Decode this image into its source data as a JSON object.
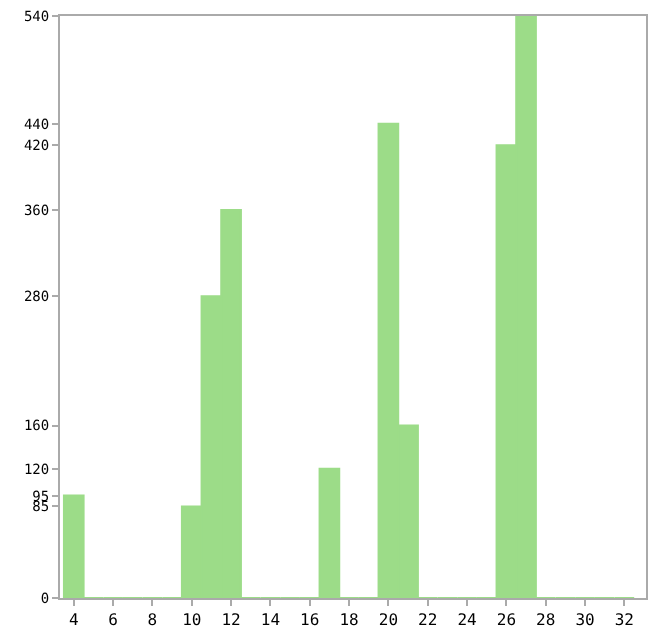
{
  "chart_data": {
    "type": "bar",
    "x": [
      4,
      5,
      6,
      7,
      8,
      9,
      10,
      11,
      12,
      13,
      14,
      15,
      16,
      17,
      18,
      19,
      20,
      21,
      22,
      23,
      24,
      25,
      26,
      27,
      28,
      29,
      30,
      31,
      32
    ],
    "values": [
      95,
      0,
      0,
      0,
      0,
      0,
      85,
      280,
      360,
      0,
      0,
      0,
      0,
      120,
      0,
      0,
      440,
      160,
      0,
      0,
      0,
      0,
      420,
      540,
      0,
      0,
      0,
      0,
      0
    ],
    "color": "#9cdc88",
    "xlim": [
      3.3,
      33.1
    ],
    "xticks": [
      4,
      6,
      8,
      10,
      12,
      14,
      16,
      18,
      20,
      22,
      24,
      26,
      28,
      30,
      32
    ],
    "ylim": [
      0,
      540
    ],
    "yticks": [
      0,
      85,
      95,
      120,
      160,
      280,
      360,
      420,
      440,
      540
    ],
    "grid": false,
    "legend": false
  }
}
